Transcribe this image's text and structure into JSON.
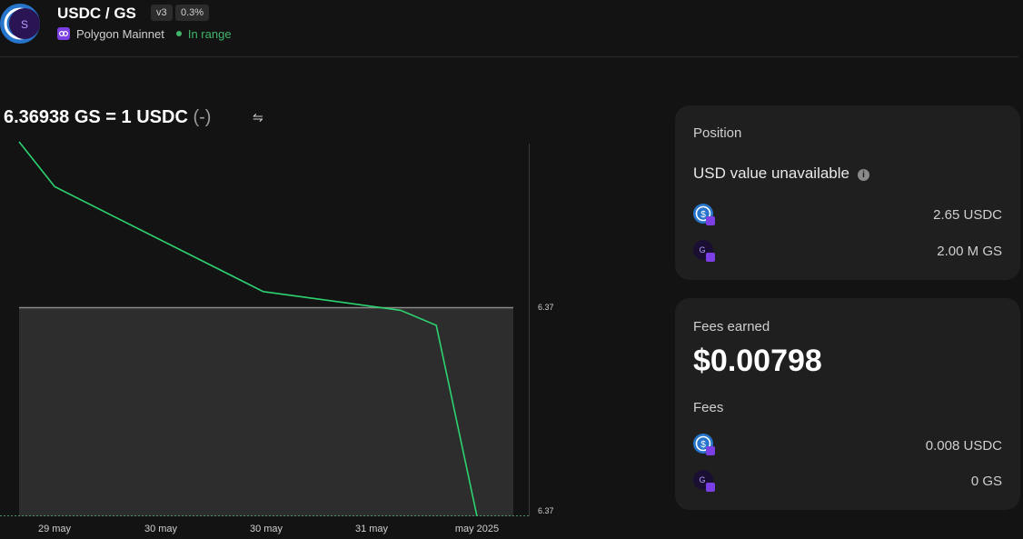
{
  "header": {
    "pair_title": "USDC / GS",
    "version_badge": "v3",
    "fee_badge": "0.3%",
    "network": "Polygon Mainnet",
    "range_status": "In range",
    "logo_letter": "S",
    "colors": {
      "in_range": "#40b66b",
      "network": "#7b3fe4",
      "usdc": "#2775ca"
    }
  },
  "price": {
    "rate": "6.36938 GS = 1 USDC",
    "change": "(-)",
    "swap_icon": "swap-arrows-icon"
  },
  "chart_data": {
    "type": "line",
    "line_color": "#2dd36f",
    "x_ticks": [
      "29 may",
      "30 may",
      "30 may",
      "31 may",
      "may 2025"
    ],
    "y_ticks": [
      "6.37",
      "6.37"
    ],
    "series": [
      {
        "values": [
          1.0,
          0.88,
          0.88,
          0.6,
          0.6,
          0.55,
          0.55,
          0.51,
          0.51,
          0.0
        ]
      }
    ],
    "steps_x": [
      0.0,
      0.07,
      0.07,
      0.48,
      0.48,
      0.75,
      0.75,
      0.82,
      0.82,
      0.9
    ],
    "range_band": {
      "lower": "6.37",
      "upper": "6.37"
    }
  },
  "position": {
    "title": "Position",
    "usd_note": "USD value unavailable",
    "token_a": {
      "icon": "usdc-token-icon",
      "amount": "2.65 USDC"
    },
    "token_b": {
      "icon": "gs-token-icon",
      "amount": "2.00 M GS",
      "letter": "G"
    }
  },
  "fees": {
    "title": "Fees earned",
    "value": "$0.00798",
    "subtitle": "Fees",
    "token_a": {
      "icon": "usdc-token-icon",
      "amount": "0.008 USDC"
    },
    "token_b": {
      "icon": "gs-token-icon",
      "amount": "0 GS",
      "letter": "G"
    }
  }
}
